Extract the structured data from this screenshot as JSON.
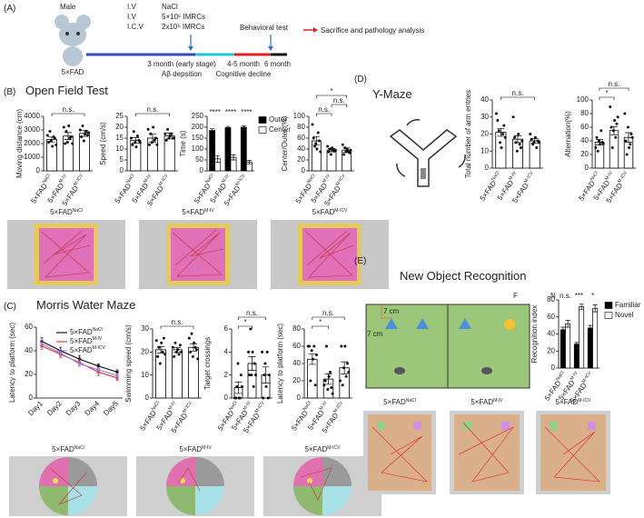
{
  "panel_a": {
    "label": "(A)",
    "sex": "Male",
    "model": "5×FAD",
    "routes": [
      "I.V",
      "I.V",
      "I.C.V"
    ],
    "treatments": [
      "NaCl",
      "5×10⁶ IMRCs",
      "2x10⁵ IMRCs"
    ],
    "behavioral_test": "Behavioral test",
    "endpoint": "Sacrifice and pathology analysis",
    "timeline": [
      "3 month (early stage)",
      "Aβ depsition",
      "4-5 month",
      "Cognitive decline",
      "6 month"
    ]
  },
  "panel_b": {
    "label": "(B)",
    "title": "Open Field Test",
    "image_prefix": "5×FAD",
    "images": [
      "NaCl",
      "M-IV",
      "M-ICV"
    ]
  },
  "panel_c": {
    "label": "(C)",
    "title": "Morris Water Maze",
    "image_prefix": "5×FAD",
    "images": [
      "NaCl",
      "M-IV",
      "M-ICV"
    ]
  },
  "panel_d": {
    "label": "(D)",
    "title": "Y-Maze"
  },
  "panel_e": {
    "label": "(E)",
    "title": "New Object Recognition",
    "objects": [
      "F",
      "N"
    ],
    "scale": [
      "7 cm",
      "7 cm"
    ],
    "image_prefix": "5×FAD",
    "images": [
      "NaCl",
      "M-IV",
      "M-ICV"
    ]
  },
  "chart_data": [
    {
      "type": "bar",
      "ylabel": "Moving distance (cm)",
      "label_prefix": "5×FAD",
      "categories": [
        "NaCl",
        "M-IV",
        "M-ICV"
      ],
      "values": [
        2300,
        2550,
        2750
      ],
      "errors": [
        180,
        260,
        220
      ],
      "points": [
        [
          2600,
          2100,
          2900,
          2200,
          1800,
          2500,
          2400,
          1900
        ],
        [
          3200,
          2000,
          2900,
          2100,
          3300,
          2400,
          2500,
          2000
        ],
        [
          3000,
          2500,
          3300,
          2200,
          2700,
          2900,
          2600,
          2800
        ]
      ],
      "color": "#ffffff",
      "ylim": [
        0,
        4000
      ],
      "yticks": [
        0,
        1000,
        2000,
        3000,
        4000
      ],
      "annotations": [
        {
          "text": "n.s.",
          "between": [
            0,
            2
          ]
        }
      ]
    },
    {
      "type": "bar",
      "ylabel": "Speed (cm/s)",
      "label_prefix": "5×FAD",
      "categories": [
        "NaCl",
        "M-IV",
        "M-ICV"
      ],
      "values": [
        14,
        15,
        16
      ],
      "errors": [
        1.2,
        1.8,
        1.4
      ],
      "points": [
        [
          15,
          12,
          18,
          13,
          11,
          16,
          14,
          13
        ],
        [
          19,
          12,
          17,
          13,
          20,
          14,
          15,
          12
        ],
        [
          17,
          14,
          19,
          15,
          16,
          17,
          15,
          15
        ]
      ],
      "color": "#ffffff",
      "ylim": [
        0,
        25
      ],
      "yticks": [
        0,
        5,
        10,
        15,
        20,
        25
      ],
      "annotations": [
        {
          "text": "n.s.",
          "between": [
            0,
            2
          ]
        }
      ]
    },
    {
      "type": "grouped_bar",
      "ylabel": "Time (s)",
      "label_prefix": "5×FAD",
      "categories": [
        "NaCl",
        "M-IV",
        "M-ICV"
      ],
      "series": [
        {
          "name": "Outer",
          "color": "#000000",
          "values": [
            185,
            198,
            200
          ],
          "errors": [
            8,
            6,
            7
          ]
        },
        {
          "name": "Center",
          "color": "#ffffff",
          "values": [
            55,
            62,
            40
          ],
          "errors": [
            15,
            12,
            8
          ]
        }
      ],
      "ylim": [
        0,
        250
      ],
      "yticks": [
        0,
        50,
        100,
        150,
        200,
        250
      ],
      "legend": "right",
      "annotations": [
        {
          "text": "****",
          "between": [
            0,
            0
          ]
        },
        {
          "text": "****",
          "between": [
            1,
            1
          ]
        },
        {
          "text": "****",
          "between": [
            2,
            2
          ]
        }
      ]
    },
    {
      "type": "bar",
      "ylabel": "Center/Outer (%)",
      "label_prefix": "5×FAD",
      "categories": [
        "NaCl",
        "M-IV",
        "M-ICV"
      ],
      "values": [
        55,
        38,
        38
      ],
      "errors": [
        8,
        3,
        4
      ],
      "points": [
        [
          85,
          60,
          45,
          50,
          40,
          70,
          55,
          35
        ],
        [
          45,
          35,
          40,
          30,
          42,
          38,
          36,
          38
        ],
        [
          48,
          30,
          42,
          35,
          40,
          36,
          33,
          38
        ]
      ],
      "color": "#ffffff",
      "ylim": [
        0,
        100
      ],
      "yticks": [
        0,
        20,
        40,
        60,
        80,
        100
      ],
      "annotations": [
        {
          "text": "n.s.",
          "between": [
            0,
            1
          ]
        },
        {
          "text": "n.s.",
          "between": [
            1,
            2
          ]
        },
        {
          "text": "*",
          "between": [
            0,
            2
          ]
        }
      ]
    },
    {
      "type": "line",
      "ylabel": "Latency to platform (sec)",
      "label_prefix": "5×FAD",
      "categories": [
        "Day1",
        "Day2",
        "Day3",
        "Day4",
        "Day5"
      ],
      "series": [
        {
          "name": "NaCl",
          "color": "#000000",
          "values": [
            48,
            40,
            33,
            27,
            22
          ],
          "errors": [
            3,
            3,
            3,
            2,
            2
          ]
        },
        {
          "name": "M-IV",
          "color": "#e8251f",
          "values": [
            44,
            37,
            30,
            22,
            17
          ],
          "errors": [
            3,
            3,
            3,
            3,
            2
          ]
        },
        {
          "name": "M-ICV",
          "color": "#9b7fe0",
          "values": [
            46,
            38,
            29,
            24,
            19
          ],
          "errors": [
            3,
            3,
            2,
            2,
            2
          ]
        }
      ],
      "ylim": [
        0,
        60
      ],
      "yticks": [
        0,
        20,
        40,
        60
      ],
      "legend": "top-right"
    },
    {
      "type": "bar",
      "ylabel": "Swimming speed (cm/s)",
      "label_prefix": "5×FAD",
      "categories": [
        "NaCl",
        "M-IV",
        "M-ICV"
      ],
      "values": [
        21,
        21,
        22
      ],
      "errors": [
        1.4,
        1,
        1.6
      ],
      "points": [
        [
          25,
          18,
          22,
          15,
          24,
          20,
          26,
          19
        ],
        [
          22,
          18,
          24,
          20,
          21,
          19,
          23,
          20
        ],
        [
          26,
          20,
          28,
          18,
          24,
          22,
          21,
          17
        ]
      ],
      "color": "#ffffff",
      "ylim": [
        0,
        30
      ],
      "yticks": [
        0,
        10,
        20,
        30
      ],
      "annotations": [
        {
          "text": "n.s.",
          "between": [
            0,
            2
          ]
        }
      ]
    },
    {
      "type": "bar",
      "ylabel": "Target crossings",
      "label_prefix": "5×FAD",
      "categories": [
        "NaCl",
        "M-IV",
        "M-ICV"
      ],
      "values": [
        0.9,
        3,
        2
      ],
      "errors": [
        0.5,
        0.6,
        0.7
      ],
      "points": [
        [
          0,
          0,
          1,
          3,
          0,
          0,
          2,
          1
        ],
        [
          4,
          2,
          6,
          2,
          4,
          1,
          3,
          2
        ],
        [
          4,
          0,
          2,
          3,
          1,
          4,
          0,
          2
        ]
      ],
      "color": "#ffffff",
      "ylim": [
        0,
        6
      ],
      "yticks": [
        0,
        2,
        4,
        6
      ],
      "annotations": [
        {
          "text": "*",
          "between": [
            0,
            1
          ]
        },
        {
          "text": "n.s.",
          "between": [
            0,
            2
          ]
        }
      ]
    },
    {
      "type": "bar",
      "ylabel": "Latency to platform (sec)",
      "label_prefix": "5×FAD",
      "categories": [
        "NaCl",
        "M-IV",
        "M-ICV"
      ],
      "values": [
        45,
        22,
        35
      ],
      "errors": [
        6,
        6,
        7
      ],
      "points": [
        [
          60,
          60,
          20,
          55,
          45,
          60,
          15,
          50
        ],
        [
          15,
          20,
          60,
          10,
          25,
          30,
          12,
          5
        ],
        [
          20,
          60,
          15,
          35,
          60,
          25,
          40,
          30
        ]
      ],
      "color": "#ffffff",
      "ylim": [
        0,
        80
      ],
      "yticks": [
        0,
        20,
        40,
        60,
        80
      ],
      "annotations": [
        {
          "text": "*",
          "between": [
            0,
            1
          ]
        },
        {
          "text": "n.s.",
          "between": [
            0,
            2
          ]
        }
      ]
    },
    {
      "type": "bar",
      "ylabel": "Total number of arm entries",
      "label_prefix": "5×FAD",
      "categories": [
        "NaCl",
        "M-IV",
        "M-ICV"
      ],
      "values": [
        21,
        17,
        16
      ],
      "errors": [
        2.3,
        2,
        1.3
      ],
      "points": [
        [
          32,
          28,
          22,
          15,
          12,
          20,
          25,
          18
        ],
        [
          30,
          18,
          15,
          10,
          20,
          14,
          12,
          16
        ],
        [
          20,
          17,
          14,
          15,
          18,
          12,
          16,
          15
        ]
      ],
      "color": "#ffffff",
      "ylim": [
        0,
        40
      ],
      "yticks": [
        0,
        10,
        20,
        30,
        40
      ],
      "annotations": [
        {
          "text": "n.s.",
          "between": [
            0,
            2
          ]
        }
      ]
    },
    {
      "type": "bar",
      "ylabel": "Alternation(%)",
      "label_prefix": "5×FAD",
      "categories": [
        "NaCl",
        "M-IV",
        "M-ICV"
      ],
      "values": [
        38,
        55,
        45
      ],
      "errors": [
        4,
        6,
        7
      ],
      "points": [
        [
          30,
          45,
          25,
          40,
          35,
          55,
          38,
          36
        ],
        [
          90,
          60,
          30,
          55,
          70,
          45,
          65,
          75
        ],
        [
          80,
          40,
          20,
          60,
          30,
          35,
          50,
          45
        ]
      ],
      "color": "#ffffff",
      "ylim": [
        0,
        100
      ],
      "yticks": [
        0,
        20,
        40,
        60,
        80,
        100
      ],
      "annotations": [
        {
          "text": "*",
          "between": [
            0,
            1
          ]
        },
        {
          "text": "n.s.",
          "between": [
            0,
            2
          ]
        }
      ]
    },
    {
      "type": "grouped_bar",
      "ylabel": "Recognition index",
      "label_prefix": "5×FAD",
      "categories": [
        "NaCl",
        "M-IV",
        "M-ICV"
      ],
      "series": [
        {
          "name": "Familiar",
          "color": "#000000",
          "values": [
            45,
            28,
            47
          ],
          "errors": [
            3,
            2,
            3
          ]
        },
        {
          "name": "Novel",
          "color": "#ffffff",
          "values": [
            52,
            72,
            70
          ],
          "errors": [
            4,
            3,
            4
          ]
        }
      ],
      "ylim": [
        0,
        80
      ],
      "yticks": [
        0,
        20,
        40,
        60,
        80
      ],
      "legend": "right",
      "annotations": [
        {
          "text": "n.s.",
          "between": [
            0,
            0
          ]
        },
        {
          "text": "***",
          "between": [
            1,
            1
          ]
        },
        {
          "text": "*",
          "between": [
            2,
            2
          ]
        }
      ]
    }
  ]
}
